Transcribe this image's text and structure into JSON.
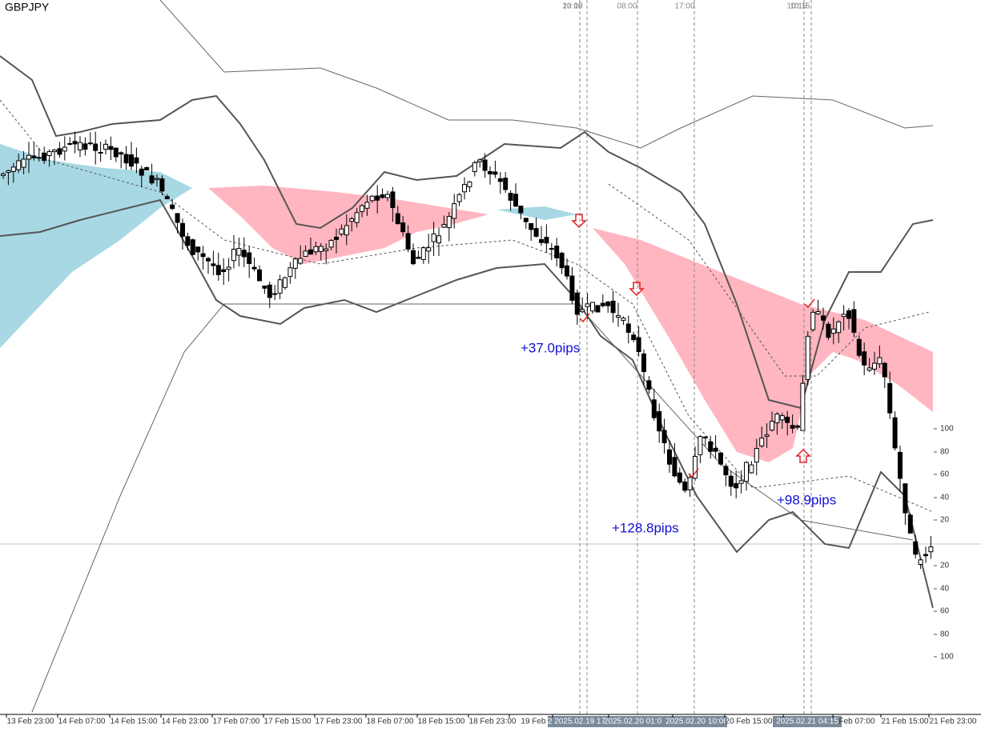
{
  "symbol": "GBPJPY",
  "time_markers": [
    "23:00",
    "10:15",
    "08:00",
    "17:00",
    "10:15",
    "10:15"
  ],
  "x_axis_labels": [
    "13 Feb 23:00",
    "14 Feb 07:00",
    "14 Feb 15:00",
    "14 Feb 23:00",
    "17 Feb 07:00",
    "17 Feb 15:00",
    "17 Feb 23:00",
    "18 Feb 07:00",
    "18 Feb 15:00",
    "18 Feb 23:00",
    "19 Feb",
    "2 2025.02.19 17",
    "2025.02.20 01:0",
    "2025.02.20 10:00",
    "20 Feb 15:00",
    "2025.02.21 04:15",
    "Feb 07:00",
    "21 Feb 15:00",
    "21 Feb 23:00"
  ],
  "price_scale_labels": [
    "100",
    "80",
    "60",
    "40",
    "20",
    "20",
    "40",
    "60",
    "80",
    "100"
  ],
  "annotations": [
    "+37.0pips",
    "+128.8pips",
    "+98.9pips"
  ]
}
